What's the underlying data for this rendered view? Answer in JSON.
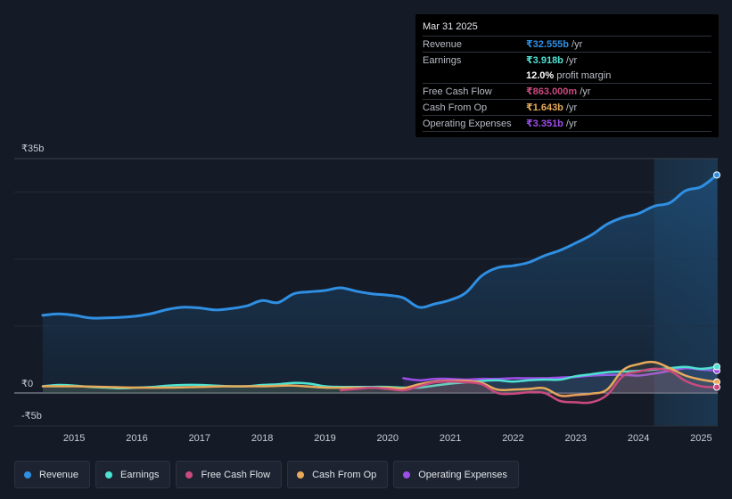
{
  "tooltip": {
    "date": "Mar 31 2025",
    "rows": {
      "revenue": {
        "label": "Revenue",
        "value": "₹32.555b",
        "unit": "/yr"
      },
      "earnings": {
        "label": "Earnings",
        "value": "₹3.918b",
        "unit": "/yr"
      },
      "margin": {
        "value": "12.0%",
        "unit": "profit margin"
      },
      "fcf": {
        "label": "Free Cash Flow",
        "value": "₹863.000m",
        "unit": "/yr"
      },
      "cfo": {
        "label": "Cash From Op",
        "value": "₹1.643b",
        "unit": "/yr"
      },
      "opex": {
        "label": "Operating Expenses",
        "value": "₹3.351b",
        "unit": "/yr"
      }
    }
  },
  "legend": [
    {
      "label": "Revenue",
      "color": "#2f8fe3"
    },
    {
      "label": "Earnings",
      "color": "#4de2d2"
    },
    {
      "label": "Free Cash Flow",
      "color": "#c94a7e"
    },
    {
      "label": "Cash From Op",
      "color": "#e8aa5a"
    },
    {
      "label": "Operating Expenses",
      "color": "#9d4ee8"
    }
  ],
  "colors": {
    "revenue": "#2f8fe3",
    "earnings": "#4de2d2",
    "fcf": "#c94a7e",
    "cfo": "#e8aa5a",
    "opex": "#9d4ee8"
  },
  "chart_data": {
    "type": "area",
    "title": "",
    "xlabel": "",
    "ylabel": "",
    "y_tick_labels": [
      "₹35b",
      "₹0",
      "-₹5b"
    ],
    "x_tick_labels": [
      "2015",
      "2016",
      "2017",
      "2018",
      "2019",
      "2020",
      "2021",
      "2022",
      "2023",
      "2024",
      "2025"
    ],
    "x_ticks": [
      2015,
      2016,
      2017,
      2018,
      2019,
      2020,
      2021,
      2022,
      2023,
      2024,
      2025
    ],
    "xlim": [
      2013.8,
      2025.25
    ],
    "ylim": [
      -5,
      35
    ],
    "highlight_range": [
      2024.25,
      2025.25
    ],
    "series": [
      {
        "name": "Revenue",
        "key": "revenue",
        "fill": true,
        "points": [
          [
            2014.5,
            11.6
          ],
          [
            2014.75,
            11.8
          ],
          [
            2015.0,
            11.6
          ],
          [
            2015.25,
            11.2
          ],
          [
            2015.5,
            11.2
          ],
          [
            2015.75,
            11.3
          ],
          [
            2016.0,
            11.5
          ],
          [
            2016.25,
            11.9
          ],
          [
            2016.5,
            12.5
          ],
          [
            2016.75,
            12.8
          ],
          [
            2017.0,
            12.7
          ],
          [
            2017.25,
            12.4
          ],
          [
            2017.5,
            12.6
          ],
          [
            2017.75,
            13.0
          ],
          [
            2018.0,
            13.8
          ],
          [
            2018.25,
            13.5
          ],
          [
            2018.5,
            14.8
          ],
          [
            2018.75,
            15.1
          ],
          [
            2019.0,
            15.3
          ],
          [
            2019.25,
            15.7
          ],
          [
            2019.5,
            15.2
          ],
          [
            2019.75,
            14.8
          ],
          [
            2020.0,
            14.6
          ],
          [
            2020.25,
            14.2
          ],
          [
            2020.5,
            12.8
          ],
          [
            2020.75,
            13.3
          ],
          [
            2021.0,
            13.9
          ],
          [
            2021.25,
            15.0
          ],
          [
            2021.5,
            17.5
          ],
          [
            2021.75,
            18.7
          ],
          [
            2022.0,
            19.0
          ],
          [
            2022.25,
            19.5
          ],
          [
            2022.5,
            20.5
          ],
          [
            2022.75,
            21.3
          ],
          [
            2023.0,
            22.4
          ],
          [
            2023.25,
            23.6
          ],
          [
            2023.5,
            25.2
          ],
          [
            2023.75,
            26.2
          ],
          [
            2024.0,
            26.8
          ],
          [
            2024.25,
            27.9
          ],
          [
            2024.5,
            28.4
          ],
          [
            2024.75,
            30.2
          ],
          [
            2025.0,
            30.8
          ],
          [
            2025.25,
            32.555
          ]
        ]
      },
      {
        "name": "Earnings",
        "key": "earnings",
        "points": [
          [
            2014.5,
            1.0
          ],
          [
            2014.75,
            1.2
          ],
          [
            2015.0,
            1.1
          ],
          [
            2015.25,
            0.9
          ],
          [
            2015.5,
            0.8
          ],
          [
            2015.75,
            0.7
          ],
          [
            2016.0,
            0.8
          ],
          [
            2016.25,
            0.9
          ],
          [
            2016.5,
            1.1
          ],
          [
            2016.75,
            1.2
          ],
          [
            2017.0,
            1.2
          ],
          [
            2017.25,
            1.1
          ],
          [
            2017.5,
            1.0
          ],
          [
            2017.75,
            1.0
          ],
          [
            2018.0,
            1.2
          ],
          [
            2018.25,
            1.3
          ],
          [
            2018.5,
            1.5
          ],
          [
            2018.75,
            1.4
          ],
          [
            2019.0,
            1.0
          ],
          [
            2019.25,
            0.9
          ],
          [
            2019.5,
            0.9
          ],
          [
            2019.75,
            0.9
          ],
          [
            2020.0,
            0.9
          ],
          [
            2020.25,
            0.8
          ],
          [
            2020.5,
            0.8
          ],
          [
            2020.75,
            1.1
          ],
          [
            2021.0,
            1.4
          ],
          [
            2021.25,
            1.6
          ],
          [
            2021.5,
            1.8
          ],
          [
            2021.75,
            1.9
          ],
          [
            2022.0,
            1.7
          ],
          [
            2022.25,
            1.9
          ],
          [
            2022.5,
            2.0
          ],
          [
            2022.75,
            2.0
          ],
          [
            2023.0,
            2.5
          ],
          [
            2023.25,
            2.8
          ],
          [
            2023.5,
            3.1
          ],
          [
            2023.75,
            3.2
          ],
          [
            2024.0,
            3.3
          ],
          [
            2024.25,
            3.5
          ],
          [
            2024.5,
            3.7
          ],
          [
            2024.75,
            3.9
          ],
          [
            2025.0,
            3.6
          ],
          [
            2025.25,
            3.918
          ]
        ]
      },
      {
        "name": "Free Cash Flow",
        "key": "fcf",
        "points": [
          [
            2019.25,
            0.4
          ],
          [
            2019.5,
            0.6
          ],
          [
            2019.75,
            0.8
          ],
          [
            2020.0,
            0.6
          ],
          [
            2020.25,
            0.4
          ],
          [
            2020.5,
            1.0
          ],
          [
            2020.75,
            1.6
          ],
          [
            2021.0,
            1.7
          ],
          [
            2021.25,
            1.6
          ],
          [
            2021.5,
            1.3
          ],
          [
            2021.75,
            0.0
          ],
          [
            2022.0,
            -0.1
          ],
          [
            2022.25,
            0.1
          ],
          [
            2022.5,
            0.0
          ],
          [
            2022.75,
            -1.2
          ],
          [
            2023.0,
            -1.4
          ],
          [
            2023.25,
            -1.4
          ],
          [
            2023.5,
            -0.3
          ],
          [
            2023.75,
            2.5
          ],
          [
            2024.0,
            3.2
          ],
          [
            2024.25,
            3.6
          ],
          [
            2024.5,
            3.3
          ],
          [
            2024.75,
            1.8
          ],
          [
            2025.0,
            1.0
          ],
          [
            2025.25,
            0.863
          ]
        ]
      },
      {
        "name": "Cash From Op",
        "key": "cfo",
        "points": [
          [
            2014.5,
            1.0
          ],
          [
            2015.0,
            1.0
          ],
          [
            2015.5,
            0.9
          ],
          [
            2016.0,
            0.8
          ],
          [
            2016.5,
            0.8
          ],
          [
            2017.0,
            0.9
          ],
          [
            2017.5,
            1.0
          ],
          [
            2018.0,
            1.0
          ],
          [
            2018.5,
            1.1
          ],
          [
            2019.0,
            0.8
          ],
          [
            2019.5,
            0.8
          ],
          [
            2020.0,
            0.8
          ],
          [
            2020.25,
            0.7
          ],
          [
            2020.5,
            1.3
          ],
          [
            2020.75,
            1.7
          ],
          [
            2021.0,
            1.8
          ],
          [
            2021.25,
            1.8
          ],
          [
            2021.5,
            1.5
          ],
          [
            2021.75,
            0.5
          ],
          [
            2022.0,
            0.5
          ],
          [
            2022.25,
            0.6
          ],
          [
            2022.5,
            0.7
          ],
          [
            2022.75,
            -0.4
          ],
          [
            2023.0,
            -0.3
          ],
          [
            2023.25,
            -0.1
          ],
          [
            2023.5,
            0.5
          ],
          [
            2023.75,
            3.4
          ],
          [
            2024.0,
            4.3
          ],
          [
            2024.25,
            4.6
          ],
          [
            2024.5,
            3.7
          ],
          [
            2024.75,
            2.6
          ],
          [
            2025.0,
            2.0
          ],
          [
            2025.25,
            1.643
          ]
        ]
      },
      {
        "name": "Operating Expenses",
        "key": "opex",
        "points": [
          [
            2020.25,
            2.2
          ],
          [
            2020.5,
            1.9
          ],
          [
            2020.75,
            2.1
          ],
          [
            2021.0,
            2.1
          ],
          [
            2021.25,
            2.0
          ],
          [
            2021.5,
            2.1
          ],
          [
            2021.75,
            2.1
          ],
          [
            2022.0,
            2.2
          ],
          [
            2022.25,
            2.2
          ],
          [
            2022.5,
            2.2
          ],
          [
            2022.75,
            2.3
          ],
          [
            2023.0,
            2.4
          ],
          [
            2023.25,
            2.6
          ],
          [
            2023.5,
            2.7
          ],
          [
            2023.75,
            2.7
          ],
          [
            2024.0,
            2.6
          ],
          [
            2024.25,
            2.9
          ],
          [
            2024.5,
            3.3
          ],
          [
            2024.75,
            3.7
          ],
          [
            2025.0,
            3.5
          ],
          [
            2025.25,
            3.351
          ]
        ]
      }
    ]
  }
}
